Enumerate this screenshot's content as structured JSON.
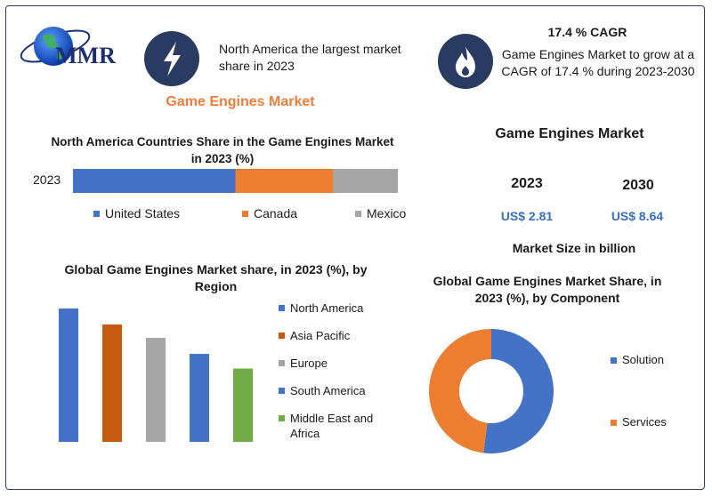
{
  "logo": {
    "text": "MMR"
  },
  "header": {
    "main_title": "Game Engines Market",
    "fact1": {
      "icon": "lightning-icon",
      "text": "North America the largest market share in 2023"
    },
    "fact2": {
      "icon": "flame-icon",
      "title": "17.4 % CAGR",
      "text": "Game Engines Market to grow at a CAGR of 17.4 % during 2023-2030"
    }
  },
  "market_size": {
    "title": "Game Engines Market",
    "years": [
      "2023",
      "2030"
    ],
    "values": [
      "US$ 2.81",
      "US$ 8.64"
    ],
    "note": "Market Size in billion"
  },
  "colors": {
    "accent": "#ee7d3b",
    "navy": "#2a3b61",
    "value_blue": "#3a6fc0"
  },
  "chart_data": [
    {
      "type": "bar",
      "orientation": "horizontal-stacked",
      "title": "North America Countries Share in the Game Engines Market in 2023 (%)",
      "categories": [
        "2023"
      ],
      "series": [
        {
          "name": "United States",
          "values": [
            50
          ],
          "color": "#4472c4"
        },
        {
          "name": "Canada",
          "values": [
            30
          ],
          "color": "#ed7d31"
        },
        {
          "name": "Mexico",
          "values": [
            20
          ],
          "color": "#a5a5a5"
        }
      ],
      "xlim": [
        0,
        100
      ],
      "legend": "bottom"
    },
    {
      "type": "bar",
      "title": "Global Game Engines Market share, in 2023 (%), by Region",
      "categories": [
        "North America",
        "Asia Pacific",
        "Europe",
        "South America",
        "Middle East and Africa"
      ],
      "values": [
        100,
        88,
        78,
        66,
        55
      ],
      "colors": [
        "#4472c4",
        "#c55a11",
        "#a5a5a5",
        "#4472c4",
        "#70ad47"
      ],
      "ylim": [
        0,
        100
      ],
      "legend": "right"
    },
    {
      "type": "pie",
      "variant": "donut",
      "title": "Global Game Engines Market Share, in 2023 (%), by Component",
      "labels": [
        "Solution",
        "Services"
      ],
      "values": [
        52,
        48
      ],
      "colors": [
        "#4472c4",
        "#ed7d31"
      ],
      "legend": "right"
    }
  ]
}
